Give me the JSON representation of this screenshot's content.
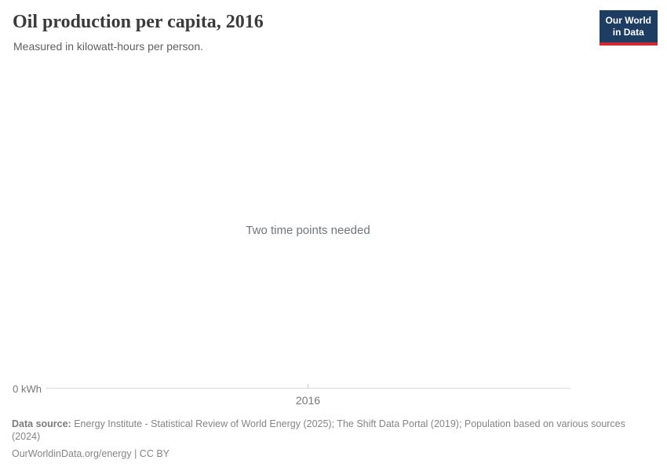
{
  "header": {
    "title": "Oil production per capita, 2016",
    "subtitle": "Measured in kilowatt-hours per person.",
    "logo": {
      "line1": "Our World",
      "line2": "in Data"
    }
  },
  "chart": {
    "empty_message": "Two time points needed",
    "y_axis_tick": "0 kWh",
    "x_axis_tick": "2016"
  },
  "chart_data": {
    "type": "line",
    "title": "Oil production per capita, 2016",
    "subtitle": "Measured in kilowatt-hours per person.",
    "unit": "kilowatt-hours per person",
    "series": [],
    "x_ticks": [
      "2016"
    ],
    "y_ticks": [
      "0 kWh"
    ],
    "annotations": [
      "Two time points needed"
    ],
    "legend": "none",
    "grid": false
  },
  "footer": {
    "datasource_label": "Data source:",
    "datasource_text": " Energy Institute - Statistical Review of World Energy (2025); The Shift Data Portal (2019); Population based on various sources\n(2024)",
    "attribution": "OurWorldinData.org/energy | CC BY"
  },
  "colors": {
    "logo_bg": "#1d3d63",
    "logo_accent": "#cf2a31",
    "axis_line": "#dbdbdb",
    "text_muted": "#858585"
  }
}
